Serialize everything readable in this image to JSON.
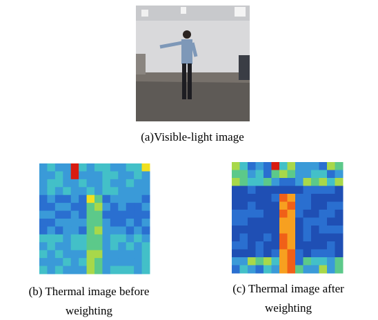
{
  "figure": {
    "panels": [
      {
        "caption_lines": [
          "(a)Visible-light image"
        ]
      },
      {
        "caption_lines": [
          "(b) Thermal image before",
          "weighting"
        ]
      },
      {
        "caption_lines": [
          "(c) Thermal image after",
          "weighting"
        ]
      }
    ]
  }
}
